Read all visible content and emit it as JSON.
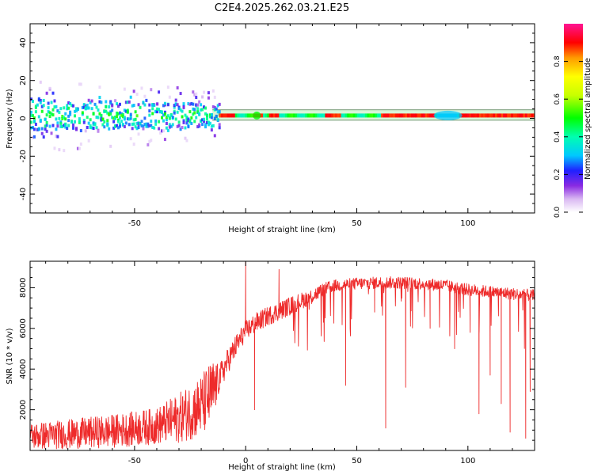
{
  "title": "C2E4.2025.262.03.21.E25",
  "colors": {
    "snr_line": "#ee2b2b",
    "frame": "#000000",
    "background": "#ffffff"
  },
  "chart_data": [
    {
      "type": "heatmap",
      "name": "spectrogram",
      "xlabel": "Height of straight line (km)",
      "ylabel": "Frequency (Hz)",
      "xlim": [
        -97,
        130
      ],
      "ylim": [
        -50,
        50
      ],
      "xticks": [
        -50,
        0,
        50,
        100
      ],
      "xtick_labels": [
        "-50",
        "",
        "50",
        "100"
      ],
      "yticks": [
        -40,
        -20,
        0,
        20,
        40
      ],
      "ytick_labels": [
        "-40",
        "-20",
        "0",
        "20",
        "40"
      ],
      "band_center_hz": 1.5,
      "colorbar": {
        "label": "Normalized spectral amplitude",
        "range": [
          0,
          1
        ],
        "ticks": [
          0.0,
          0.2,
          0.4,
          0.6,
          0.8
        ],
        "tick_labels": [
          "0.0",
          "0.2",
          "0.4",
          "0.6",
          "0.8"
        ]
      }
    },
    {
      "type": "line",
      "name": "snr",
      "xlabel": "Height of straight line (km)",
      "ylabel": "SNR (10 * v/v)",
      "xlim": [
        -97,
        130
      ],
      "ylim": [
        0,
        9300
      ],
      "xticks": [
        -50,
        0,
        50,
        100
      ],
      "xtick_labels": [
        "-50",
        "0",
        "50",
        "100"
      ],
      "yticks": [
        2000,
        4000,
        6000,
        8000
      ],
      "ytick_labels": [
        "2000",
        "4000",
        "6000",
        "8000"
      ],
      "trend": {
        "x": [
          -97,
          -80,
          -60,
          -40,
          -30,
          -20,
          -15,
          -12,
          -8,
          -4,
          0,
          5,
          10,
          20,
          30,
          35,
          40,
          50,
          60,
          70,
          80,
          90,
          100,
          110,
          120,
          130
        ],
        "y": [
          700,
          800,
          950,
          1200,
          1600,
          2200,
          2800,
          3500,
          4400,
          5200,
          5900,
          6300,
          6600,
          7100,
          7600,
          7900,
          8100,
          8200,
          8250,
          8250,
          8200,
          8100,
          7900,
          7800,
          7700,
          7600
        ]
      },
      "noise_amplitude": {
        "x": [
          -97,
          -40,
          -15,
          -12,
          0,
          20,
          40,
          130
        ],
        "y": [
          650,
          900,
          1700,
          700,
          500,
          450,
          300,
          300
        ]
      },
      "dropouts": [
        {
          "x": 0,
          "y": 9250
        },
        {
          "x": 4,
          "y": 2000
        },
        {
          "x": 15,
          "y": 8900
        },
        {
          "x": 35,
          "y": 6300
        },
        {
          "x": 45,
          "y": 3200
        },
        {
          "x": 58,
          "y": 6800
        },
        {
          "x": 63,
          "y": 1100
        },
        {
          "x": 72,
          "y": 3100
        },
        {
          "x": 83,
          "y": 6000
        },
        {
          "x": 94,
          "y": 5000
        },
        {
          "x": 101,
          "y": 5800
        },
        {
          "x": 105,
          "y": 1800
        },
        {
          "x": 110,
          "y": 3700
        },
        {
          "x": 115,
          "y": 2300
        },
        {
          "x": 119,
          "y": 900
        },
        {
          "x": 126,
          "y": 600
        },
        {
          "x": 128,
          "y": 2900
        }
      ]
    }
  ]
}
